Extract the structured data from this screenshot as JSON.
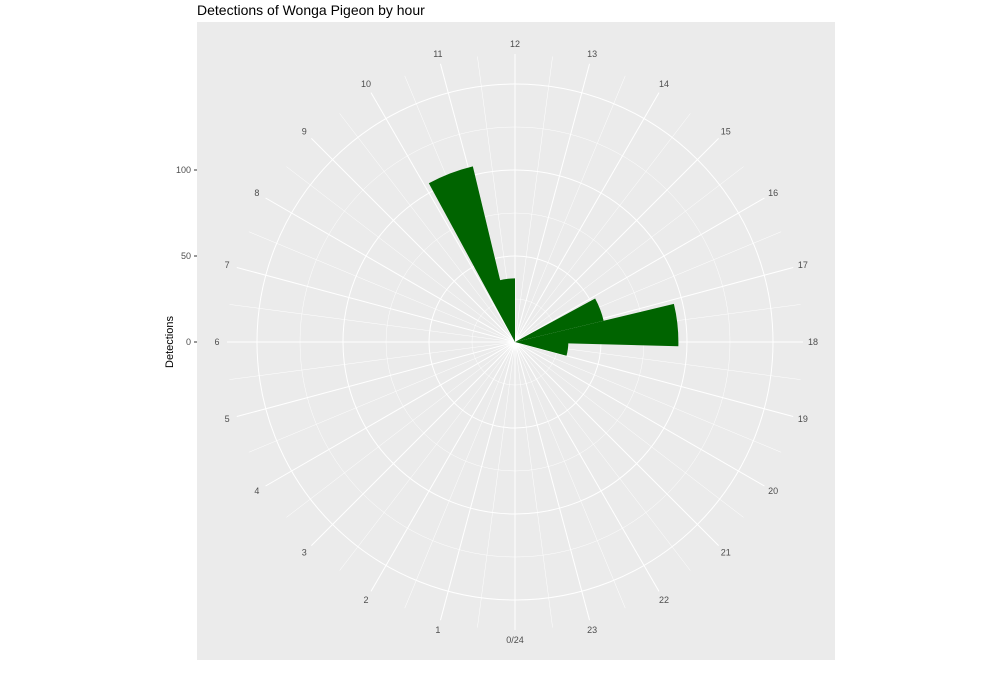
{
  "chart_data": {
    "type": "bar",
    "coord": "polar",
    "title": "Detections of Wonga Pigeon by hour",
    "xlabel": "",
    "ylabel": "Detections",
    "hour_labels": [
      "0/24",
      "1",
      "2",
      "3",
      "4",
      "5",
      "6",
      "7",
      "8",
      "9",
      "10",
      "11",
      "12",
      "13",
      "14",
      "15",
      "16",
      "17",
      "18",
      "19",
      "20",
      "21",
      "22",
      "23"
    ],
    "y_ticks": [
      0,
      50,
      100
    ],
    "ylim": [
      0,
      150
    ],
    "series": [
      {
        "x": [
          10.6,
          11.5,
          16.6,
          17.6,
          18.5
        ],
        "values": [
          105,
          37,
          53,
          95,
          31
        ]
      }
    ],
    "bar_color": "#006400",
    "panel_background": "#ebebeb",
    "grid_color": "#ffffff",
    "grid": true
  }
}
